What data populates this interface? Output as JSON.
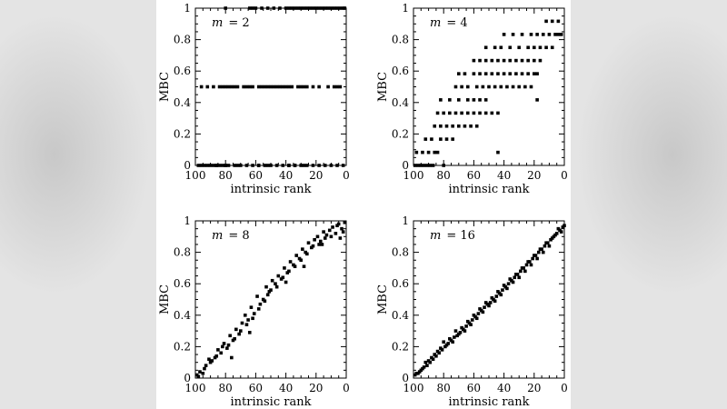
{
  "chart_data": [
    {
      "type": "scatter",
      "annotation": {
        "symbol": "m",
        "text": "= 2"
      },
      "xlabel": "intrinsic rank",
      "ylabel": "MBC",
      "xlim": [
        100,
        0
      ],
      "ylim": [
        0,
        1
      ],
      "xticks": [
        100,
        80,
        60,
        40,
        20,
        0
      ],
      "yticks": [
        0,
        0.2,
        0.4,
        0.6,
        0.8,
        1
      ],
      "ytick_labels": [
        "0",
        "0.2",
        "0.4",
        "0.6",
        "0.8",
        "1"
      ],
      "x": [
        98,
        96,
        94,
        92,
        90,
        88,
        86,
        84,
        82,
        80,
        78,
        74,
        70,
        66,
        62,
        58,
        54,
        50,
        46,
        42,
        38,
        34,
        30,
        26,
        22,
        18,
        14,
        10,
        6,
        2,
        86,
        80,
        72,
        58,
        52,
        38,
        34,
        28,
        96,
        92,
        88,
        84,
        82,
        80,
        78,
        76,
        74,
        72,
        68,
        66,
        64,
        62,
        58,
        56,
        54,
        52,
        50,
        48,
        46,
        44,
        42,
        40,
        38,
        36,
        32,
        30,
        28,
        26,
        22,
        18,
        12,
        8,
        6,
        4,
        80,
        64,
        62,
        60,
        56,
        52,
        48,
        44,
        40,
        38,
        36,
        34,
        32,
        30,
        28,
        26,
        24,
        22,
        20,
        18,
        16,
        14,
        12,
        10,
        8,
        6,
        4,
        2,
        1
      ],
      "y": [
        0,
        0,
        0,
        0,
        0,
        0,
        0,
        0,
        0,
        0,
        0,
        0,
        0,
        0,
        0,
        0,
        0,
        0,
        0,
        0,
        0,
        0,
        0,
        0,
        0,
        0,
        0,
        0,
        0,
        0,
        0,
        0,
        0,
        0,
        0,
        0,
        0,
        0,
        0.5,
        0.5,
        0.5,
        0.5,
        0.5,
        0.5,
        0.5,
        0.5,
        0.5,
        0.5,
        0.5,
        0.5,
        0.5,
        0.5,
        0.5,
        0.5,
        0.5,
        0.5,
        0.5,
        0.5,
        0.5,
        0.5,
        0.5,
        0.5,
        0.5,
        0.5,
        0.5,
        0.5,
        0.5,
        0.5,
        0.5,
        0.5,
        0.5,
        0.5,
        0.5,
        0.5,
        1,
        1,
        1,
        1,
        1,
        1,
        1,
        1,
        1,
        1,
        1,
        1,
        1,
        1,
        1,
        1,
        1,
        1,
        1,
        1,
        1,
        1,
        1,
        1,
        1,
        1,
        1,
        1,
        1
      ]
    },
    {
      "type": "scatter",
      "annotation": {
        "symbol": "m",
        "text": "= 4"
      },
      "xlabel": "intrinsic rank",
      "ylabel": "MBC",
      "xlim": [
        100,
        0
      ],
      "ylim": [
        0,
        1
      ],
      "xticks": [
        100,
        80,
        60,
        40,
        20,
        0
      ],
      "yticks": [
        0,
        0.2,
        0.4,
        0.6,
        0.8,
        1
      ],
      "ytick_labels": [
        "0",
        "0.2",
        "0.4",
        "0.6",
        "0.8",
        "1"
      ],
      "x": [
        99,
        97,
        95,
        93,
        91,
        89,
        87,
        98,
        94,
        90,
        86,
        84,
        92,
        88,
        82,
        78,
        74,
        86,
        82,
        78,
        74,
        70,
        66,
        62,
        58,
        84,
        80,
        76,
        72,
        68,
        64,
        60,
        56,
        52,
        48,
        44,
        82,
        76,
        70,
        64,
        60,
        56,
        52,
        72,
        68,
        64,
        58,
        54,
        50,
        46,
        42,
        38,
        34,
        30,
        26,
        22,
        70,
        66,
        60,
        56,
        52,
        48,
        44,
        40,
        36,
        32,
        28,
        24,
        20,
        18,
        60,
        56,
        52,
        48,
        44,
        40,
        36,
        32,
        28,
        24,
        20,
        16,
        52,
        46,
        42,
        36,
        30,
        24,
        20,
        16,
        12,
        8,
        40,
        34,
        28,
        22,
        18,
        14,
        10,
        6,
        4,
        2,
        12,
        8,
        4,
        44,
        80,
        18
      ],
      "y": [
        0,
        0,
        0,
        0,
        0,
        0,
        0,
        0.083,
        0.083,
        0.083,
        0.083,
        0.083,
        0.167,
        0.167,
        0.167,
        0.167,
        0.167,
        0.25,
        0.25,
        0.25,
        0.25,
        0.25,
        0.25,
        0.25,
        0.25,
        0.333,
        0.333,
        0.333,
        0.333,
        0.333,
        0.333,
        0.333,
        0.333,
        0.333,
        0.333,
        0.333,
        0.417,
        0.417,
        0.417,
        0.417,
        0.417,
        0.417,
        0.417,
        0.5,
        0.5,
        0.5,
        0.5,
        0.5,
        0.5,
        0.5,
        0.5,
        0.5,
        0.5,
        0.5,
        0.5,
        0.5,
        0.583,
        0.583,
        0.583,
        0.583,
        0.583,
        0.583,
        0.583,
        0.583,
        0.583,
        0.583,
        0.583,
        0.583,
        0.583,
        0.583,
        0.667,
        0.667,
        0.667,
        0.667,
        0.667,
        0.667,
        0.667,
        0.667,
        0.667,
        0.667,
        0.667,
        0.667,
        0.75,
        0.75,
        0.75,
        0.75,
        0.75,
        0.75,
        0.75,
        0.75,
        0.75,
        0.75,
        0.833,
        0.833,
        0.833,
        0.833,
        0.833,
        0.833,
        0.833,
        0.833,
        0.833,
        0.833,
        0.917,
        0.917,
        0.917,
        0.083,
        0,
        0.417
      ]
    },
    {
      "type": "scatter",
      "annotation": {
        "symbol": "m",
        "text": "= 8"
      },
      "xlabel": "intrinsic rank",
      "ylabel": "MBC",
      "xlim": [
        100,
        0
      ],
      "ylim": [
        0,
        1
      ],
      "xticks": [
        100,
        80,
        60,
        40,
        20,
        0
      ],
      "yticks": [
        0,
        0.2,
        0.4,
        0.6,
        0.8,
        1
      ],
      "ytick_labels": [
        "0",
        "0.2",
        "0.4",
        "0.6",
        "0.8",
        "1"
      ],
      "x": [
        99,
        97,
        95,
        93,
        91,
        89,
        87,
        85,
        83,
        81,
        79,
        77,
        75,
        73,
        71,
        69,
        67,
        65,
        63,
        61,
        59,
        57,
        55,
        53,
        51,
        49,
        47,
        45,
        43,
        41,
        39,
        37,
        35,
        33,
        31,
        29,
        27,
        25,
        23,
        21,
        19,
        17,
        15,
        13,
        11,
        9,
        7,
        5,
        3,
        1,
        98,
        94,
        90,
        86,
        82,
        78,
        74,
        70,
        66,
        62,
        58,
        54,
        50,
        46,
        42,
        38,
        34,
        30,
        26,
        22,
        18,
        14,
        10,
        6,
        2,
        76,
        64,
        52,
        40,
        28,
        16,
        4
      ],
      "y": [
        0.02,
        0.04,
        0.03,
        0.08,
        0.12,
        0.11,
        0.13,
        0.18,
        0.16,
        0.22,
        0.19,
        0.27,
        0.24,
        0.31,
        0.28,
        0.35,
        0.4,
        0.37,
        0.45,
        0.41,
        0.52,
        0.47,
        0.5,
        0.58,
        0.55,
        0.62,
        0.6,
        0.65,
        0.63,
        0.7,
        0.67,
        0.74,
        0.72,
        0.78,
        0.76,
        0.82,
        0.8,
        0.86,
        0.83,
        0.88,
        0.9,
        0.87,
        0.93,
        0.91,
        0.94,
        0.96,
        0.92,
        0.98,
        0.95,
        0.99,
        0.01,
        0.06,
        0.1,
        0.14,
        0.2,
        0.21,
        0.25,
        0.3,
        0.34,
        0.38,
        0.44,
        0.49,
        0.56,
        0.58,
        0.64,
        0.68,
        0.71,
        0.75,
        0.79,
        0.84,
        0.85,
        0.89,
        0.9,
        0.97,
        0.93,
        0.13,
        0.29,
        0.53,
        0.61,
        0.71,
        0.85,
        0.89
      ]
    },
    {
      "type": "scatter",
      "annotation": {
        "symbol": "m",
        "text": "= 16"
      },
      "xlabel": "intrinsic rank",
      "ylabel": "MBC",
      "xlim": [
        100,
        0
      ],
      "ylim": [
        0,
        1
      ],
      "xticks": [
        100,
        80,
        60,
        40,
        20,
        0
      ],
      "yticks": [
        0,
        0.2,
        0.4,
        0.6,
        0.8,
        1
      ],
      "ytick_labels": [
        "0",
        "0.2",
        "0.4",
        "0.6",
        "0.8",
        "1"
      ],
      "x": [
        99,
        97,
        95,
        93,
        91,
        89,
        87,
        85,
        83,
        81,
        79,
        77,
        75,
        73,
        71,
        69,
        67,
        65,
        63,
        61,
        59,
        57,
        55,
        53,
        51,
        49,
        47,
        45,
        43,
        41,
        39,
        37,
        35,
        33,
        31,
        29,
        27,
        25,
        23,
        21,
        19,
        17,
        15,
        13,
        11,
        9,
        7,
        5,
        3,
        1,
        98,
        96,
        94,
        92,
        90,
        88,
        86,
        84,
        82,
        80,
        78,
        76,
        74,
        72,
        70,
        68,
        66,
        64,
        62,
        60,
        58,
        56,
        54,
        52,
        50,
        48,
        46,
        44,
        42,
        40,
        38,
        36,
        34,
        32,
        30,
        28,
        26,
        24,
        22,
        20,
        18,
        16,
        14,
        12,
        10,
        8,
        6,
        4,
        2,
        0
      ],
      "y": [
        0.02,
        0.03,
        0.05,
        0.07,
        0.08,
        0.1,
        0.12,
        0.14,
        0.16,
        0.18,
        0.2,
        0.22,
        0.24,
        0.26,
        0.27,
        0.29,
        0.31,
        0.33,
        0.35,
        0.37,
        0.39,
        0.41,
        0.43,
        0.45,
        0.47,
        0.48,
        0.5,
        0.52,
        0.54,
        0.56,
        0.58,
        0.6,
        0.62,
        0.64,
        0.66,
        0.68,
        0.7,
        0.72,
        0.74,
        0.76,
        0.78,
        0.8,
        0.82,
        0.84,
        0.86,
        0.88,
        0.9,
        0.92,
        0.94,
        0.96,
        0.03,
        0.04,
        0.06,
        0.1,
        0.11,
        0.13,
        0.15,
        0.17,
        0.19,
        0.23,
        0.21,
        0.25,
        0.23,
        0.3,
        0.28,
        0.32,
        0.3,
        0.36,
        0.34,
        0.4,
        0.38,
        0.44,
        0.42,
        0.48,
        0.46,
        0.51,
        0.49,
        0.55,
        0.53,
        0.59,
        0.57,
        0.63,
        0.61,
        0.66,
        0.64,
        0.7,
        0.68,
        0.74,
        0.72,
        0.78,
        0.76,
        0.82,
        0.8,
        0.86,
        0.84,
        0.89,
        0.91,
        0.95,
        0.93,
        0.97
      ]
    }
  ]
}
